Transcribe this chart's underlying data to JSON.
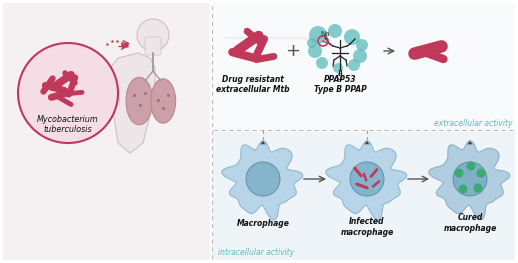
{
  "bg_color": "#f5f5f5",
  "crimson": "#c0385a",
  "teal": "#5bbcba",
  "blue_cell_outer": "#b8d4e8",
  "blue_cell_inner": "#8ab8d0",
  "green_dot": "#3aaa72",
  "figsize": [
    5.18,
    2.63
  ],
  "dpi": 100,
  "labels": {
    "mycobacterium": "Mycobacterium\ntuberculosis",
    "drug_resistant": "Drug resistant\nextracellular Mtb",
    "ppap53": "PPAP53\nType B PPAP",
    "extracellular": "extracellular activity",
    "macrophage": "Macrophage",
    "infected": "Infected\nmacrophage",
    "cured": "Cured\nmacrophage",
    "intracellular": "intracellular activity"
  }
}
